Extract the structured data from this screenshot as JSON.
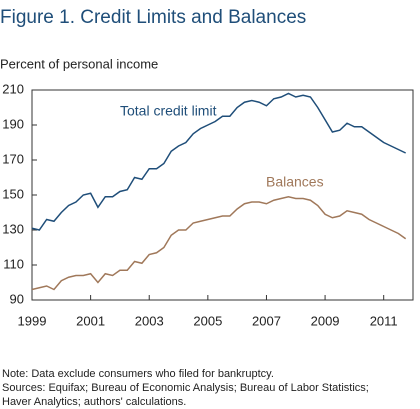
{
  "chart_data": {
    "type": "line",
    "title": "Figure 1. Credit Limits and Balances",
    "y_label": "Percent of personal income",
    "x": [
      1999,
      1999.25,
      1999.5,
      1999.75,
      2000,
      2000.25,
      2000.5,
      2000.75,
      2001,
      2001.25,
      2001.5,
      2001.75,
      2002,
      2002.25,
      2002.5,
      2002.75,
      2003,
      2003.25,
      2003.5,
      2003.75,
      2004,
      2004.25,
      2004.5,
      2004.75,
      2005,
      2005.25,
      2005.5,
      2005.75,
      2006,
      2006.25,
      2006.5,
      2006.75,
      2007,
      2007.25,
      2007.5,
      2007.75,
      2008,
      2008.25,
      2008.5,
      2008.75,
      2009,
      2009.25,
      2009.5,
      2009.75,
      2010,
      2010.25,
      2010.5,
      2010.75,
      2011,
      2011.25,
      2011.5,
      2011.75
    ],
    "series": [
      {
        "name": "Total credit limit",
        "color": "#1f4e79",
        "values": [
          131,
          130,
          136,
          135,
          140,
          144,
          146,
          150,
          151,
          143,
          149,
          149,
          152,
          153,
          160,
          159,
          165,
          165,
          168,
          175,
          178,
          180,
          185,
          188,
          190,
          192,
          195,
          195,
          200,
          203,
          204,
          203,
          201,
          205,
          206,
          208,
          206,
          207,
          206,
          200,
          193,
          186,
          187,
          191,
          189,
          189,
          186,
          183,
          180,
          178,
          176,
          174
        ]
      },
      {
        "name": "Balances",
        "color": "#a0785a",
        "values": [
          96,
          97,
          98,
          96,
          101,
          103,
          104,
          104,
          105,
          100,
          105,
          104,
          107,
          107,
          112,
          111,
          116,
          117,
          120,
          127,
          130,
          130,
          134,
          135,
          136,
          137,
          138,
          138,
          142,
          145,
          146,
          146,
          145,
          147,
          148,
          149,
          148,
          148,
          147,
          144,
          139,
          137,
          138,
          141,
          140,
          139,
          136,
          134,
          132,
          130,
          128,
          125
        ]
      }
    ],
    "xlim": [
      1999,
      2012
    ],
    "xticks": [
      1999,
      2001,
      2003,
      2005,
      2007,
      2009,
      2011
    ],
    "ylim": [
      90,
      210
    ],
    "yticks": [
      90,
      110,
      130,
      150,
      170,
      190,
      210
    ],
    "notes": [
      "Note: Data exclude consumers who filed for bankruptcy.",
      "Sources: Equifax; Bureau of Economic Analysis; Bureau of Labor Statistics;",
      "Haver Analytics; authors' calculations."
    ]
  }
}
